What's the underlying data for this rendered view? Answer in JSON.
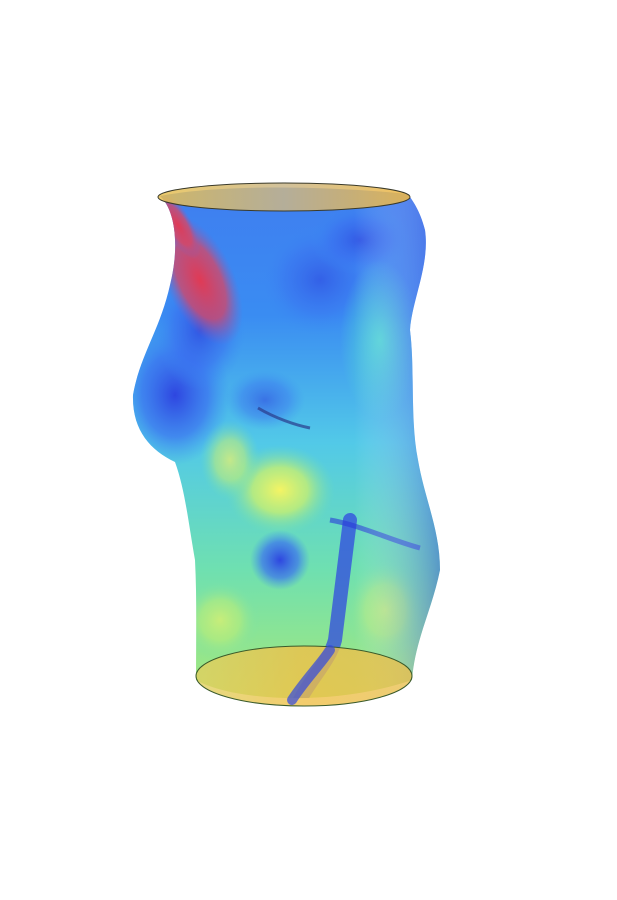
{
  "scene": {
    "subject": "vessel-surface-heatmap",
    "background_color": "#ffffff",
    "colormap": [
      "#3a2fd6",
      "#2f6ef0",
      "#2ec4f0",
      "#56e6c0",
      "#a8f070",
      "#f0f060",
      "#f0b040",
      "#e04050"
    ],
    "cap_color": "#e8c050",
    "edge_color": "#3a3a2a"
  }
}
